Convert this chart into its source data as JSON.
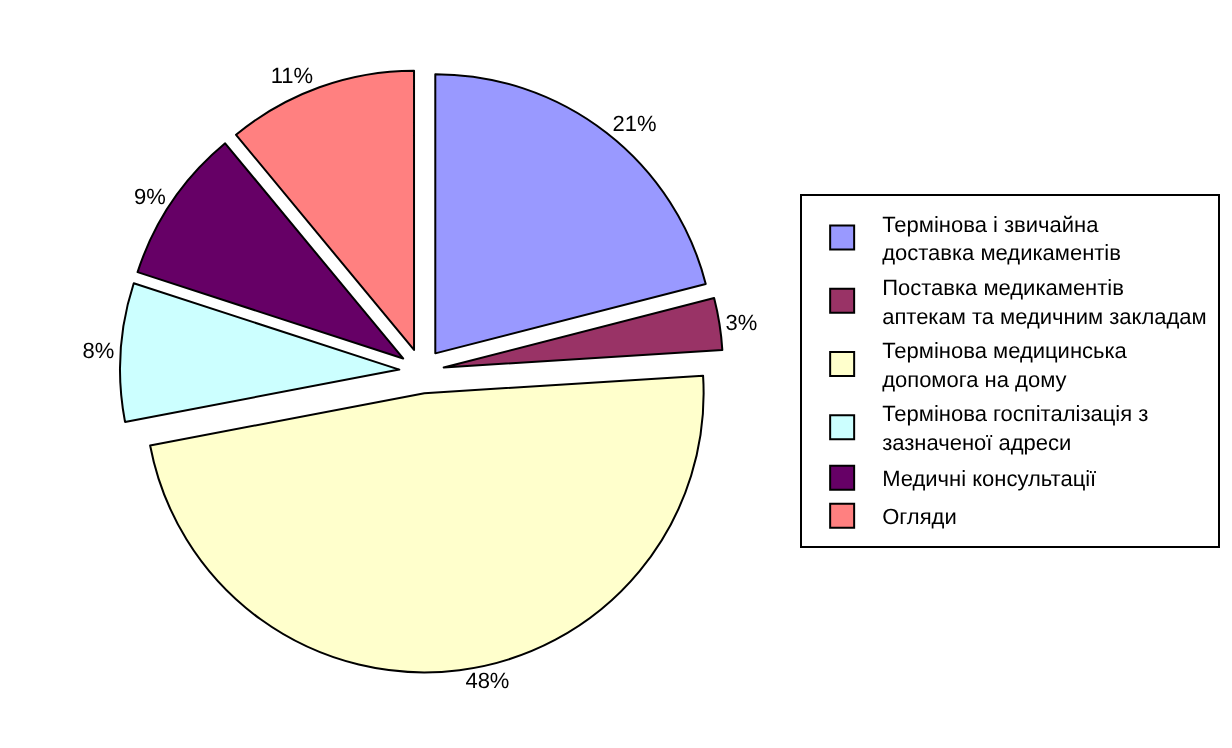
{
  "chart_data": {
    "type": "pie",
    "categories": [
      "Термінова і звичайна доставка медикаментів",
      "Поставка медикаментів аптекам та медичним закладам",
      "Термінова медицинська допомога на дому",
      "Термінова госпіталізація з зазначеної адреси",
      "Медичні консультації",
      "Огляди"
    ],
    "values": [
      21,
      3,
      48,
      8,
      9,
      11
    ],
    "value_labels": [
      "21%",
      "3%",
      "48%",
      "8%",
      "9%",
      "11%"
    ],
    "colors": [
      "#9999ff",
      "#993366",
      "#ffffcc",
      "#ccffff",
      "#660066",
      "#ff8080"
    ],
    "legend": "right"
  }
}
